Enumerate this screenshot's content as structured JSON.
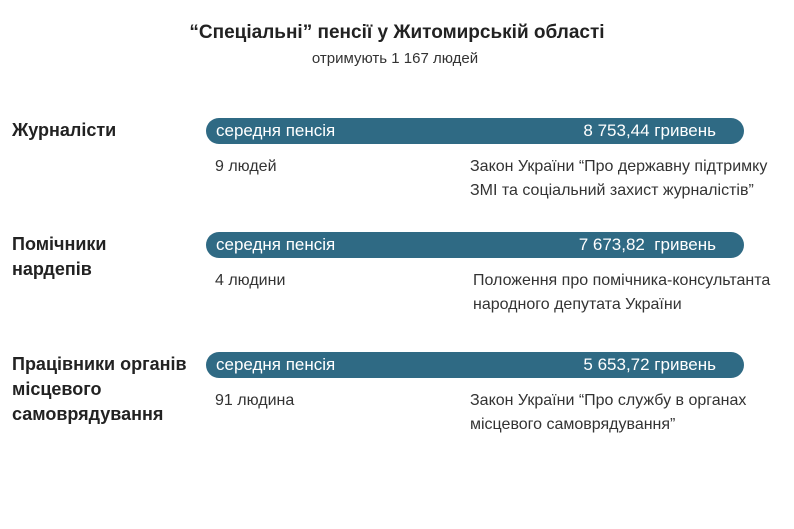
{
  "header": {
    "title": "“Спеціальні” пенсії у Житомирській області",
    "subtitle": "отримують 1 167 людей"
  },
  "colors": {
    "bar": "#2f6a84",
    "bar_text": "#ffffff"
  },
  "groups": [
    {
      "category": "Журналісти",
      "bar_label": "середня пенсія",
      "pension": "8 753,44 гривень",
      "count": "9 людей",
      "law": "Закон України “Про державну підтримку ЗМІ та соціальний захист журналістів”"
    },
    {
      "category": "Помічники нардепів",
      "bar_label": "середня пенсія",
      "pension": "7 673,82  гривень",
      "count": "4 людини",
      "law": "Положення про помічника-консультанта народного депутата України"
    },
    {
      "category": "Працівники органів місцевого самоврядування",
      "bar_label": "середня пенсія",
      "pension": "5 653,72 гривень",
      "count": "91 людина",
      "law": "Закон України “Про службу в органах місцевого самоврядування”"
    }
  ]
}
